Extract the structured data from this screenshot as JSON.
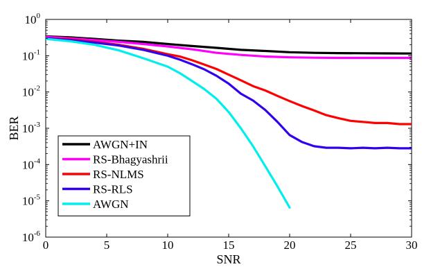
{
  "chart_data": {
    "type": "line",
    "title": "",
    "xlabel": "SNR",
    "ylabel": "BER",
    "xlim": [
      0,
      30
    ],
    "ylim": [
      1e-06,
      1
    ],
    "yscale": "log",
    "grid": false,
    "legend_position": "bottom-left",
    "x_ticks": [
      {
        "value": 0,
        "label": "0"
      },
      {
        "value": 5,
        "label": "5"
      },
      {
        "value": 10,
        "label": "10"
      },
      {
        "value": 15,
        "label": "15"
      },
      {
        "value": 20,
        "label": "20"
      },
      {
        "value": 25,
        "label": "25"
      },
      {
        "value": 30,
        "label": "30"
      }
    ],
    "y_ticks": [
      {
        "value": 1,
        "base": "10",
        "exp": "0"
      },
      {
        "value": 0.1,
        "base": "10",
        "exp": "-1"
      },
      {
        "value": 0.01,
        "base": "10",
        "exp": "-2"
      },
      {
        "value": 0.001,
        "base": "10",
        "exp": "-3"
      },
      {
        "value": 0.0001,
        "base": "10",
        "exp": "-4"
      },
      {
        "value": 1e-05,
        "base": "10",
        "exp": "-5"
      },
      {
        "value": 1e-06,
        "base": "10",
        "exp": "-6"
      }
    ],
    "series": [
      {
        "name": "AWGN+IN",
        "color": "#000000",
        "x": [
          0,
          2,
          4,
          6,
          8,
          10,
          12,
          14,
          16,
          18,
          20,
          22,
          24,
          26,
          28,
          30
        ],
        "y": [
          0.34,
          0.32,
          0.29,
          0.26,
          0.24,
          0.21,
          0.185,
          0.165,
          0.145,
          0.135,
          0.125,
          0.12,
          0.118,
          0.117,
          0.116,
          0.115
        ]
      },
      {
        "name": "RS-Bhagyashrii",
        "color": "#ff00ff",
        "x": [
          0,
          2,
          4,
          6,
          8,
          10,
          12,
          14,
          16,
          18,
          20,
          22,
          24,
          26,
          28,
          30
        ],
        "y": [
          0.33,
          0.3,
          0.27,
          0.24,
          0.21,
          0.18,
          0.15,
          0.12,
          0.105,
          0.095,
          0.09,
          0.088,
          0.087,
          0.087,
          0.087,
          0.087
        ]
      },
      {
        "name": "RS-NLMS",
        "color": "#ff0000",
        "x": [
          0,
          2,
          4,
          6,
          8,
          10,
          11,
          12,
          13,
          14,
          15,
          16,
          17,
          18,
          19,
          20,
          21,
          22,
          23,
          24,
          25,
          26,
          27,
          28,
          29,
          30
        ],
        "y": [
          0.3,
          0.28,
          0.24,
          0.2,
          0.155,
          0.11,
          0.095,
          0.075,
          0.057,
          0.043,
          0.03,
          0.021,
          0.0145,
          0.011,
          0.0078,
          0.0056,
          0.0041,
          0.0031,
          0.0023,
          0.0019,
          0.0016,
          0.0015,
          0.0014,
          0.0014,
          0.0013,
          0.0013
        ]
      },
      {
        "name": "RS-RLS",
        "color": "#3300ee",
        "x": [
          0,
          2,
          4,
          6,
          8,
          10,
          11,
          12,
          13,
          14,
          15,
          16,
          17,
          18,
          19,
          20,
          21,
          22,
          23,
          24,
          25,
          26,
          27,
          28,
          29,
          30
        ],
        "y": [
          0.3,
          0.27,
          0.23,
          0.19,
          0.145,
          0.1,
          0.078,
          0.058,
          0.042,
          0.028,
          0.017,
          0.009,
          0.0058,
          0.0032,
          0.0015,
          0.00065,
          0.00042,
          0.00032,
          0.00029,
          0.00029,
          0.00028,
          0.00029,
          0.00028,
          0.00029,
          0.00028,
          0.00028
        ]
      },
      {
        "name": "AWGN",
        "color": "#00eeee",
        "x": [
          0,
          2,
          4,
          6,
          8,
          10,
          11,
          12,
          13,
          14,
          15,
          16,
          17,
          18,
          19,
          20
        ],
        "y": [
          0.29,
          0.25,
          0.2,
          0.14,
          0.085,
          0.05,
          0.033,
          0.02,
          0.012,
          0.0065,
          0.0028,
          0.001,
          0.00032,
          9e-05,
          2.5e-05,
          6.5e-06
        ]
      }
    ]
  }
}
